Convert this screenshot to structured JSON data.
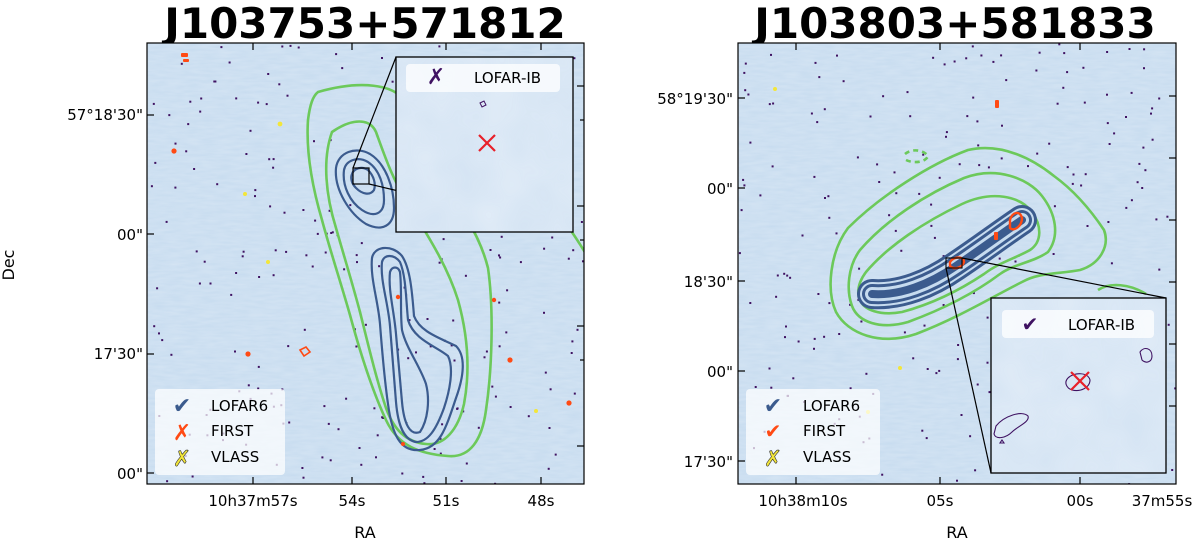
{
  "colors": {
    "lofar6": "#3b5b8e",
    "first": "#ff4a14",
    "vlass": "#f3e63a",
    "lofar_ib": "#3f1262",
    "green": "#6cc95a",
    "cross": "#e8202a",
    "background": "#c6dbef"
  },
  "panels": [
    {
      "title": "J103753+571812",
      "xlabel": "RA",
      "ylabel": "Dec",
      "x_ticks": [
        "10h37m57s",
        "54s",
        "51s",
        "48s"
      ],
      "y_ticks": [
        "57°18'30\"",
        "00\"",
        "17'30\"",
        "00\""
      ],
      "legend": [
        "LOFAR6",
        "FIRST",
        "VLASS"
      ],
      "inset_legend": "LOFAR-IB"
    },
    {
      "title": "J103803+581833",
      "xlabel": "RA",
      "ylabel": "",
      "x_ticks": [
        "10h38m10s",
        "05s",
        "00s",
        "37m55s"
      ],
      "y_ticks": [
        "58°19'30\"",
        "00\"",
        "18'30\"",
        "00\"",
        "17'30\""
      ],
      "legend": [
        "LOFAR6",
        "FIRST",
        "VLASS"
      ],
      "inset_legend": "LOFAR-IB"
    }
  ]
}
